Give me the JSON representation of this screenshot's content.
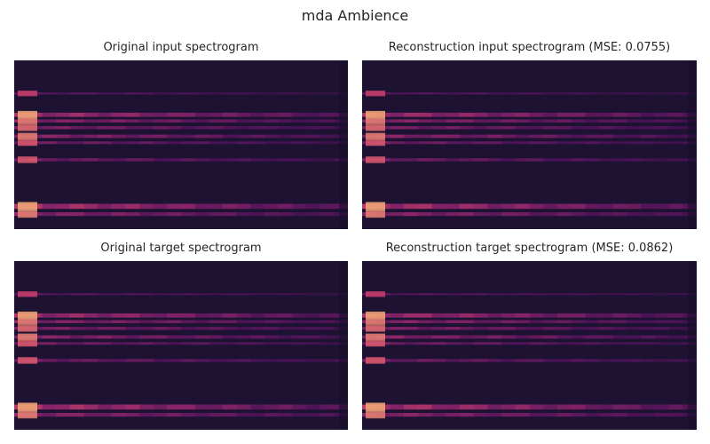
{
  "figure": {
    "suptitle": "mda Ambience"
  },
  "chart_data": [
    {
      "type": "heatmap",
      "title": "Original input spectrogram",
      "xlabel": "",
      "ylabel": "",
      "axes": "off",
      "colormap": "magma",
      "variant": 0
    },
    {
      "type": "heatmap",
      "title": "Reconstruction input spectrogram (MSE: 0.0755)",
      "xlabel": "",
      "ylabel": "",
      "axes": "off",
      "colormap": "magma",
      "mse": 0.0755,
      "variant": 1
    },
    {
      "type": "heatmap",
      "title": "Original target spectrogram",
      "xlabel": "",
      "ylabel": "",
      "axes": "off",
      "colormap": "magma",
      "variant": 0
    },
    {
      "type": "heatmap",
      "title": "Reconstruction target spectrogram (MSE: 0.0862)",
      "xlabel": "",
      "ylabel": "",
      "axes": "off",
      "colormap": "magma",
      "mse": 0.0862,
      "variant": 1
    }
  ]
}
